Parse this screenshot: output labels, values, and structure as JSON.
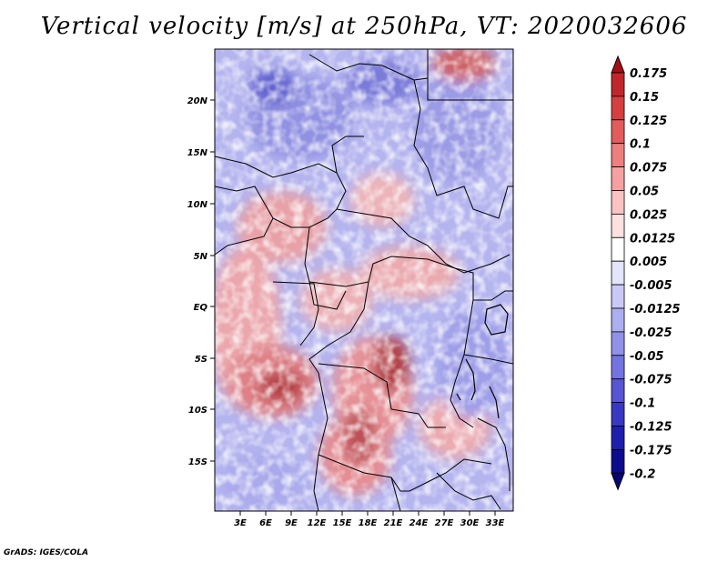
{
  "title": "Vertical velocity [m/s] at 250hPa, VT: 2020032606",
  "footer": "GrADS: IGES/COLA",
  "map": {
    "lat_labels": [
      "20N",
      "15N",
      "10N",
      "5N",
      "EQ",
      "5S",
      "10S",
      "15S"
    ],
    "lon_labels": [
      "3E",
      "6E",
      "9E",
      "12E",
      "15E",
      "18E",
      "21E",
      "24E",
      "27E",
      "30E",
      "33E"
    ],
    "field": "vertical velocity",
    "units": "m/s",
    "level": "250hPa"
  },
  "colorbar": {
    "labels": [
      "0.175",
      "0.15",
      "0.125",
      "0.1",
      "0.075",
      "0.05",
      "0.025",
      "0.0125",
      "0.005",
      "-0.005",
      "-0.0125",
      "-0.025",
      "-0.05",
      "-0.075",
      "-0.1",
      "-0.125",
      "-0.175",
      "-0.2"
    ],
    "colors": [
      "#a50f15",
      "#c0262a",
      "#d63f3f",
      "#e35c5c",
      "#ee7f7f",
      "#f5a1a1",
      "#fac2c2",
      "#fde0e0",
      "#ffffff",
      "#e4e4fb",
      "#c9c9f7",
      "#adadf1",
      "#9191ea",
      "#7474e0",
      "#5656d3",
      "#3838c2",
      "#1f1fae",
      "#0c0c8c",
      "#060670"
    ]
  }
}
